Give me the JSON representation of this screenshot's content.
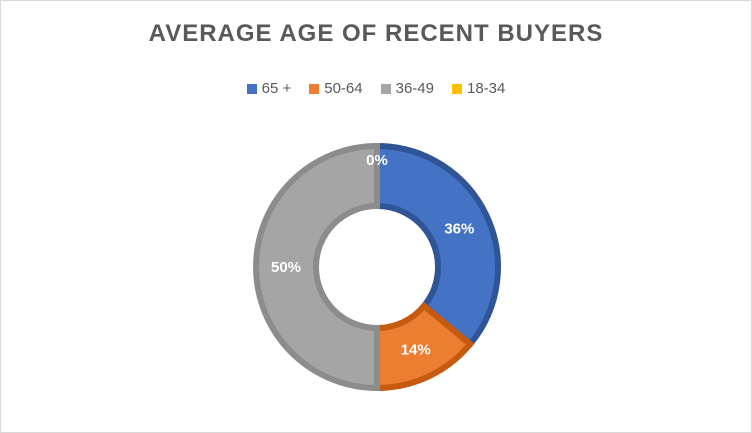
{
  "chart_data": {
    "type": "pie",
    "title": "AVERAGE AGE OF RECENT BUYERS",
    "legend_position": "top",
    "categories": [
      "65 +",
      "50-64",
      "36-49",
      "18-34"
    ],
    "values": [
      36,
      14,
      50,
      0
    ],
    "data_labels": [
      "36%",
      "14%",
      "50%",
      "0%"
    ],
    "colors": [
      "#4472c4",
      "#ed7d31",
      "#a5a5a5",
      "#ffc000"
    ],
    "border_colors": [
      "#2f5597",
      "#c55a11",
      "#8c8c8c",
      "#bf9000"
    ]
  }
}
